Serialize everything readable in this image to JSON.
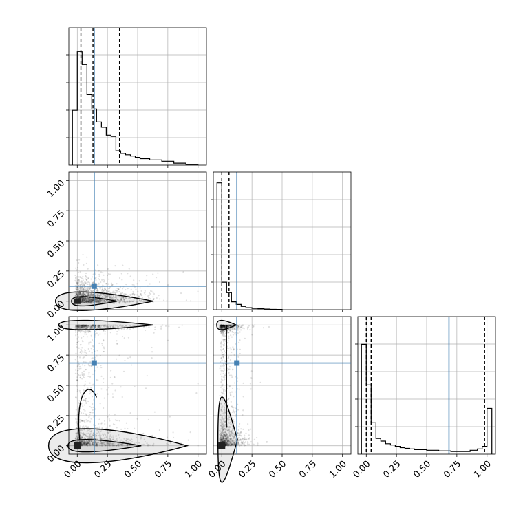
{
  "chart_data": {
    "type": "corner",
    "n_params": 3,
    "colors": {
      "truth": "#4682b4",
      "hist": "#000000",
      "points": "#000000",
      "grid": "#b0b0b0"
    },
    "grid": true,
    "axis_range": [
      -0.07,
      1.07
    ],
    "tick_values": [
      0.0,
      0.25,
      0.5,
      0.75,
      1.0
    ],
    "tick_labels": [
      "0.00",
      "0.25",
      "0.50",
      "0.75",
      "1.00"
    ],
    "truths": [
      0.14,
      0.125,
      0.685
    ],
    "quantiles": [
      [
        0.03,
        0.13,
        0.35
      ],
      [
        0.0,
        0.06,
        null
      ],
      [
        0.0,
        0.04,
        0.98
      ]
    ],
    "histograms": [
      {
        "bin_edges": [
          -0.04,
          0.0,
          0.04,
          0.08,
          0.12,
          0.16,
          0.2,
          0.24,
          0.28,
          0.32,
          0.36,
          0.4,
          0.44,
          0.48,
          0.52,
          0.6,
          0.7,
          0.8,
          0.9,
          1.0
        ],
        "counts": [
          0.42,
          0.87,
          0.77,
          0.54,
          0.43,
          0.33,
          0.29,
          0.23,
          0.22,
          0.11,
          0.09,
          0.08,
          0.07,
          0.06,
          0.05,
          0.04,
          0.03,
          0.015,
          0.005
        ]
      },
      {
        "bin_edges": [
          -0.04,
          0.0,
          0.04,
          0.08,
          0.12,
          0.16,
          0.2,
          0.25,
          0.3,
          0.35,
          0.4,
          0.45,
          0.5
        ],
        "counts": [
          0.97,
          0.21,
          0.13,
          0.06,
          0.04,
          0.025,
          0.015,
          0.01,
          0.008,
          0.005,
          0.003,
          0.002
        ]
      },
      {
        "bin_edges": [
          -0.04,
          0.0,
          0.04,
          0.08,
          0.12,
          0.16,
          0.2,
          0.24,
          0.28,
          0.32,
          0.36,
          0.4,
          0.5,
          0.6,
          0.7,
          0.8,
          0.86,
          0.92,
          0.96,
          1.0,
          1.04
        ],
        "counts": [
          0.84,
          0.53,
          0.24,
          0.12,
          0.1,
          0.08,
          0.07,
          0.06,
          0.05,
          0.045,
          0.04,
          0.035,
          0.03,
          0.025,
          0.02,
          0.02,
          0.03,
          0.04,
          0.06,
          0.35
        ]
      }
    ]
  }
}
